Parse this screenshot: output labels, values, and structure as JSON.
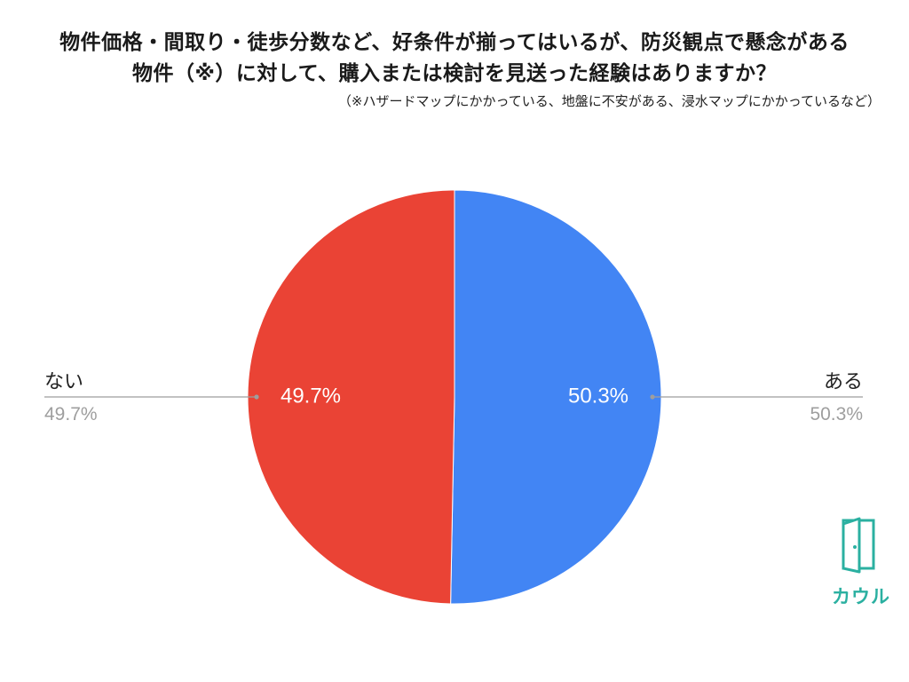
{
  "chart_data": {
    "type": "pie",
    "title_lines": [
      "物件価格・間取り・徒歩分数など、好条件が揃ってはいるが、防災観点で懸念がある",
      "物件（※）に対して、購入または検討を見送った経験はありますか？"
    ],
    "subtitle": "（※ハザードマップにかかっている、地盤に不安がある、浸水マップにかかっているなど）",
    "slices": [
      {
        "label": "ある",
        "value": 50.3,
        "value_label": "50.3%",
        "color": "#4285f4"
      },
      {
        "label": "ない",
        "value": 49.7,
        "value_label": "49.7%",
        "color": "#ea4335"
      }
    ],
    "start_angle": "top",
    "direction": "clockwise",
    "legend": "callout-lines"
  },
  "logo": {
    "text": "カウル",
    "icon": "door-icon",
    "color": "#2bb0a1"
  }
}
